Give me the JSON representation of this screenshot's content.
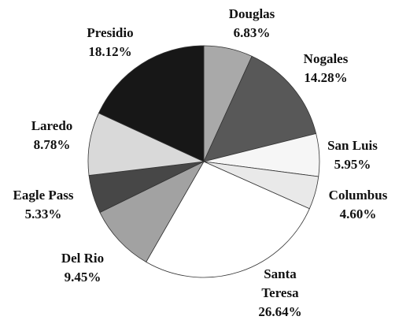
{
  "chart_data": {
    "type": "pie",
    "categories": [
      "Douglas",
      "Nogales",
      "San Luis",
      "Columbus",
      "Santa Teresa",
      "Del Rio",
      "Eagle Pass",
      "Laredo",
      "Presidio"
    ],
    "values": [
      6.83,
      14.28,
      5.95,
      4.6,
      26.64,
      9.45,
      5.33,
      8.78,
      18.12
    ],
    "value_labels": [
      "6.83%",
      "14.28%",
      "5.95%",
      "4.60%",
      "26.64%",
      "9.45%",
      "5.33%",
      "8.78%",
      "18.12%"
    ],
    "colors": [
      "#a9a9a9",
      "#585858",
      "#f6f6f6",
      "#e9e9e9",
      "#ffffff",
      "#a2a2a2",
      "#474747",
      "#d9d9d9",
      "#171717"
    ]
  }
}
